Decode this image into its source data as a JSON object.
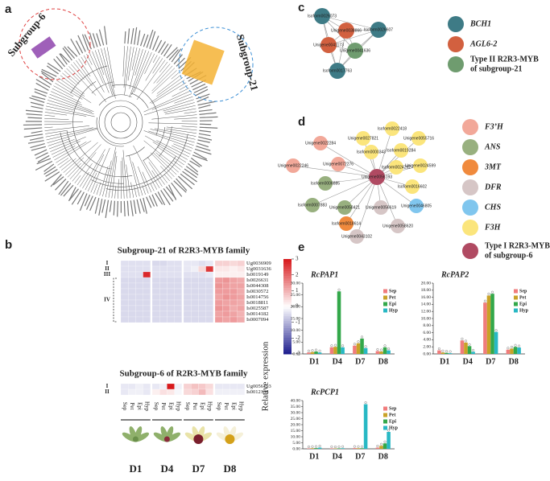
{
  "panel_a": {
    "letter": "a",
    "subgroup6": "Subgroup-6",
    "subgroup21": "Subgroup-21"
  },
  "panel_b": {
    "letter": "b",
    "columns": [
      "Sep",
      "Pet",
      "Epi",
      "Hyp"
    ],
    "stages": [
      "D1",
      "D4",
      "D7",
      "D8"
    ],
    "color_lim": [
      -3,
      3
    ],
    "color_ticks": [
      3,
      2,
      1,
      0,
      -1,
      -2,
      -3
    ],
    "colors": [
      "#1a1a8c",
      "#ffffff",
      "#d7191c"
    ],
    "heatmaps": [
      {
        "title": "Subgroup-21 of R2R3-MYB family",
        "groups": [
          "I",
          "II",
          "III",
          "IV"
        ],
        "rows": [
          "Ug0036909",
          "Ug0031636",
          "Is0019149",
          "Is0026631",
          "Is0044308",
          "Is0030572",
          "Is0014756",
          "Is0018811",
          "Is0025587",
          "Is0014182",
          "Is0007094"
        ],
        "values": [
          [
            -0.4,
            -0.4,
            -0.4,
            -0.4,
            -0.5,
            -0.5,
            -0.4,
            -0.4,
            -0.3,
            -0.3,
            -0.4,
            -0.3,
            0.6,
            0.6,
            0.5,
            0.6
          ],
          [
            -0.4,
            -0.4,
            -0.4,
            -0.4,
            -0.4,
            -0.4,
            -0.4,
            -0.4,
            -0.3,
            -0.2,
            0.5,
            2.6,
            0.3,
            0.3,
            0.2,
            0.3
          ],
          [
            -0.4,
            -0.4,
            -0.4,
            2.8,
            -0.4,
            -0.4,
            -0.4,
            -0.4,
            -0.4,
            -0.4,
            -0.4,
            -0.3,
            0.2,
            0.2,
            0.2,
            0.2
          ],
          [
            -0.5,
            -0.5,
            -0.5,
            -0.5,
            -0.5,
            -0.5,
            -0.5,
            -0.5,
            -0.5,
            -0.5,
            -0.5,
            -0.5,
            1.3,
            1.4,
            1.2,
            1.1
          ],
          [
            -0.5,
            -0.5,
            -0.5,
            -0.5,
            -0.5,
            -0.5,
            -0.5,
            -0.5,
            -0.5,
            -0.5,
            -0.5,
            -0.5,
            1.4,
            1.3,
            1.2,
            1.2
          ],
          [
            -0.5,
            -0.5,
            -0.5,
            -0.5,
            -0.5,
            -0.5,
            -0.5,
            -0.5,
            -0.5,
            -0.5,
            -0.5,
            -0.5,
            1.3,
            1.3,
            1.3,
            1.1
          ],
          [
            -0.5,
            -0.5,
            -0.5,
            -0.5,
            -0.5,
            -0.5,
            -0.5,
            -0.5,
            -0.5,
            -0.5,
            -0.5,
            -0.5,
            1.2,
            1.4,
            1.3,
            1.2
          ],
          [
            -0.5,
            -0.5,
            -0.5,
            -0.5,
            -0.5,
            -0.5,
            -0.5,
            -0.5,
            -0.5,
            -0.5,
            -0.5,
            -0.5,
            1.3,
            1.2,
            1.2,
            1.1
          ],
          [
            -0.5,
            -0.5,
            -0.5,
            -0.5,
            -0.5,
            -0.5,
            -0.5,
            -0.5,
            -0.5,
            -0.5,
            -0.5,
            -0.5,
            1.4,
            1.3,
            1.1,
            1.2
          ],
          [
            -0.5,
            -0.5,
            -0.5,
            -0.5,
            -0.5,
            -0.5,
            -0.5,
            -0.5,
            -0.5,
            -0.5,
            -0.5,
            -0.5,
            1.2,
            1.3,
            1.2,
            1.0
          ],
          [
            -0.5,
            -0.5,
            -0.5,
            -0.5,
            -0.5,
            -0.5,
            -0.5,
            -0.5,
            -0.5,
            -0.5,
            -0.5,
            -0.5,
            1.3,
            1.2,
            1.3,
            1.1
          ]
        ]
      },
      {
        "title": "Subgroup-6 of R2R3-MYB family",
        "groups": [
          "I",
          "II"
        ],
        "rows": [
          "Ug0056193",
          "Is0012108"
        ],
        "values": [
          [
            -0.3,
            -0.3,
            -0.2,
            -0.3,
            -0.3,
            -0.2,
            3.0,
            -0.2,
            0.6,
            0.8,
            0.7,
            0.5,
            -0.3,
            -0.3,
            -0.3,
            -0.3
          ],
          [
            -0.3,
            -0.2,
            -0.2,
            -0.3,
            0.2,
            0.4,
            0.3,
            -0.1,
            0.5,
            0.6,
            0.9,
            0.4,
            -0.2,
            -0.2,
            -0.2,
            -0.2
          ]
        ]
      }
    ]
  },
  "panel_c": {
    "letter": "c",
    "nodes": [
      {
        "label": "Isoform0026073",
        "color": "#3e7b86"
      },
      {
        "label": "Unigene0038866",
        "color": "#d2603f"
      },
      {
        "label": "Isoform0026607",
        "color": "#3e7b86"
      },
      {
        "label": "Unigene0041173",
        "color": "#d2603f"
      },
      {
        "label": "Unigene0041636",
        "color": "#6f9c6f"
      },
      {
        "label": "Isoform0017763",
        "color": "#3e7b86"
      }
    ],
    "legend": [
      {
        "name": [
          "BCH1"
        ],
        "color": "#3e7b86",
        "italic": true
      },
      {
        "name": [
          "AGL6-2"
        ],
        "color": "#d2603f",
        "italic": true
      },
      {
        "name": [
          "Type II R2R3-MYB",
          "of subgroup-21"
        ],
        "color": "#6f9c6f",
        "italic": false
      }
    ]
  },
  "panel_d": {
    "letter": "d",
    "center": {
      "label": "Unigene0056193",
      "color": "#b04a62"
    },
    "nodes": [
      {
        "label": "Isoform0022418",
        "color": "#fbe57c"
      },
      {
        "label": "Unigene0027821",
        "color": "#fbe57c"
      },
      {
        "label": "Unigene0055716",
        "color": "#fbe57c"
      },
      {
        "label": "Unigene0022284",
        "color": "#f2a899"
      },
      {
        "label": "Isoform0000343",
        "color": "#fbe57c"
      },
      {
        "label": "Isoform0019284",
        "color": "#fbe57c"
      },
      {
        "label": "Unigene0022246",
        "color": "#f2a899"
      },
      {
        "label": "Unigene0072276",
        "color": "#f2a899"
      },
      {
        "label": "Isoform0024292",
        "color": "#fbe57c"
      },
      {
        "label": "Unigene0024599",
        "color": "#fbe57c"
      },
      {
        "label": "Isoform0006885",
        "color": "#98b07f"
      },
      {
        "label": "Isoform0016602",
        "color": "#fbe57c"
      },
      {
        "label": "Isoform0007883",
        "color": "#98b07f"
      },
      {
        "label": "Unigene0058421",
        "color": "#98b07f"
      },
      {
        "label": "Unigene0056619",
        "color": "#d6c6c6"
      },
      {
        "label": "Unigene0046805",
        "color": "#80c6ee"
      },
      {
        "label": "Isoform0018614",
        "color": "#f08a3d"
      },
      {
        "label": "Unigene0043102",
        "color": "#d6c6c6"
      },
      {
        "label": "Unigene0058620",
        "color": "#d6c6c6"
      }
    ],
    "legend": [
      {
        "name": [
          "F3’H"
        ],
        "color": "#f2a899",
        "italic": true
      },
      {
        "name": [
          "ANS"
        ],
        "color": "#98b07f",
        "italic": true
      },
      {
        "name": [
          "3MT"
        ],
        "color": "#f08a3d",
        "italic": true
      },
      {
        "name": [
          "DFR"
        ],
        "color": "#d6c6c6",
        "italic": true
      },
      {
        "name": [
          "CHS"
        ],
        "color": "#80c6ee",
        "italic": true
      },
      {
        "name": [
          "F3H"
        ],
        "color": "#fbe57c",
        "italic": true
      },
      {
        "name": [
          "Type I R2R3-MYB",
          "of subgroup-6"
        ],
        "color": "#b04a62",
        "italic": false
      }
    ]
  },
  "panel_e": {
    "letter": "e",
    "y_label": "Relative expression"
  },
  "chart_data": [
    {
      "type": "bar",
      "title": "RcPAP1",
      "categories": [
        "D1",
        "D4",
        "D7",
        "D8"
      ],
      "ylim": [
        0,
        30
      ],
      "yticks": [
        {
          "value": 0,
          "label": "0.00"
        },
        {
          "value": 5,
          "label": "5.00"
        },
        {
          "value": 10,
          "label": "10.00"
        },
        {
          "value": 15,
          "label": "15.00"
        },
        {
          "value": 20,
          "label": "20.00"
        },
        {
          "value": 25,
          "label": "25.00"
        },
        {
          "value": 30,
          "label": "30.00"
        }
      ],
      "series": [
        {
          "name": "Sep",
          "color": "#f07c7c",
          "values": [
            0.6,
            2.8,
            3.5,
            1.2
          ]
        },
        {
          "name": "Pet",
          "color": "#c9a227",
          "values": [
            0.8,
            3.0,
            4.5,
            1.0
          ]
        },
        {
          "name": "Epi",
          "color": "#33a84a",
          "values": [
            1.0,
            26.5,
            6.5,
            2.8
          ]
        },
        {
          "name": "Hyp",
          "color": "#28b8c4",
          "values": [
            0.6,
            2.8,
            2.5,
            1.5
          ]
        }
      ]
    },
    {
      "type": "bar",
      "title": "RcPAP2",
      "categories": [
        "D1",
        "D4",
        "D7",
        "D8"
      ],
      "ylim": [
        0,
        20
      ],
      "yticks": [
        {
          "value": 0,
          "label": "0.00"
        },
        {
          "value": 2,
          "label": "2.00"
        },
        {
          "value": 4,
          "label": "4.00"
        },
        {
          "value": 6,
          "label": "6.00"
        },
        {
          "value": 8,
          "label": "8.00"
        },
        {
          "value": 10,
          "label": "10.00"
        },
        {
          "value": 12,
          "label": "12.00"
        },
        {
          "value": 14,
          "label": "14.00"
        },
        {
          "value": 16,
          "label": "16.00"
        },
        {
          "value": 18,
          "label": "18.00"
        },
        {
          "value": 20,
          "label": "20.00"
        }
      ],
      "series": [
        {
          "name": "Sep",
          "color": "#f07c7c",
          "values": [
            1.0,
            3.8,
            14.5,
            1.2
          ]
        },
        {
          "name": "Pet",
          "color": "#c9a227",
          "values": [
            0.4,
            3.2,
            16.5,
            1.5
          ]
        },
        {
          "name": "Epi",
          "color": "#33a84a",
          "values": [
            0.3,
            2.2,
            17.0,
            2.0
          ]
        },
        {
          "name": "Hyp",
          "color": "#28b8c4",
          "values": [
            0.2,
            0.6,
            6.2,
            1.8
          ]
        }
      ]
    },
    {
      "type": "bar",
      "title": "RcPCP1",
      "categories": [
        "D1",
        "D4",
        "D7",
        "D8"
      ],
      "ylim": [
        0,
        40
      ],
      "yticks": [
        {
          "value": 0,
          "label": "0.00"
        },
        {
          "value": 5,
          "label": "5.00"
        },
        {
          "value": 10,
          "label": "10.00"
        },
        {
          "value": 15,
          "label": "15.00"
        },
        {
          "value": 20,
          "label": "20.00"
        },
        {
          "value": 25,
          "label": "25.00"
        },
        {
          "value": 30,
          "label": "30.00"
        },
        {
          "value": 35,
          "label": "35.00"
        },
        {
          "value": 40,
          "label": "40.00"
        }
      ],
      "series": [
        {
          "name": "Sep",
          "color": "#f07c7c",
          "values": [
            0.4,
            0.4,
            0.6,
            1.0
          ]
        },
        {
          "name": "Pet",
          "color": "#c9a227",
          "values": [
            0.5,
            0.3,
            0.5,
            2.5
          ]
        },
        {
          "name": "Epi",
          "color": "#33a84a",
          "values": [
            0.6,
            0.4,
            0.5,
            4.5
          ]
        },
        {
          "name": "Hyp",
          "color": "#28b8c4",
          "values": [
            1.0,
            0.5,
            37.0,
            14.0
          ]
        }
      ]
    }
  ]
}
